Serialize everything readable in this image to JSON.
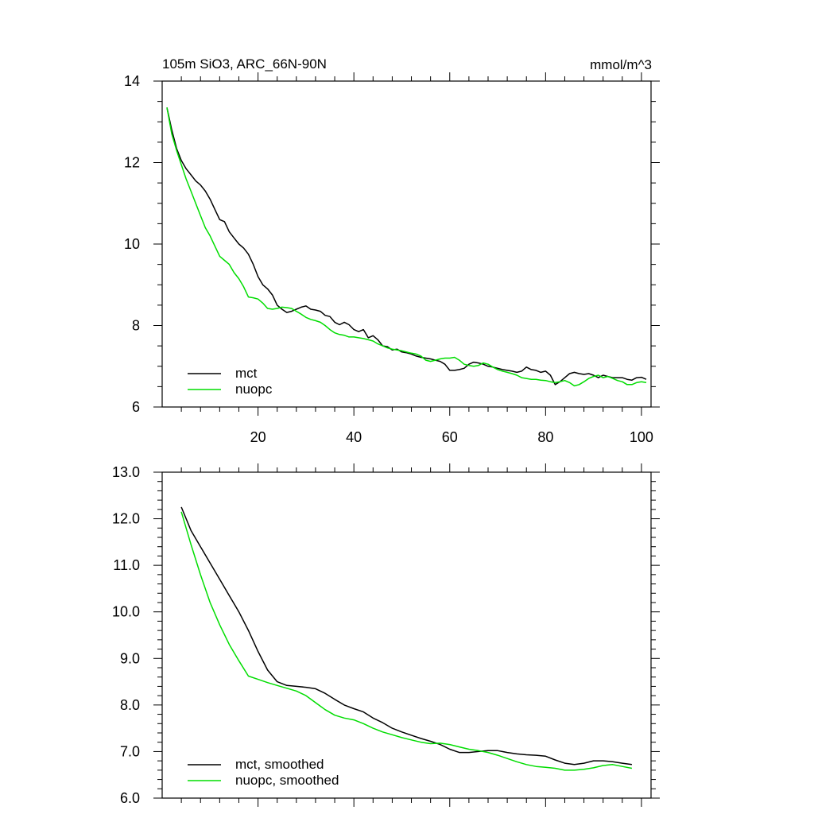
{
  "chart_data": [
    {
      "type": "line",
      "title": "105m SiO3, ARC_66N-90N",
      "units": "mmol/m^3",
      "xlim": [
        0,
        102
      ],
      "ylim": [
        6,
        14
      ],
      "xticks": [
        20,
        40,
        60,
        80,
        100
      ],
      "xtick_labels": [
        "20",
        "40",
        "60",
        "80",
        "100"
      ],
      "yticks": [
        6,
        8,
        10,
        12,
        14
      ],
      "ytick_labels": [
        "6",
        "8",
        "10",
        "12",
        "14"
      ],
      "legend_position": "bottom-left",
      "series": [
        {
          "name": "mct",
          "color": "#000000",
          "x": [
            1,
            2,
            3,
            4,
            5,
            6,
            7,
            8,
            9,
            10,
            11,
            12,
            13,
            14,
            15,
            16,
            17,
            18,
            19,
            20,
            21,
            22,
            23,
            24,
            25,
            26,
            27,
            28,
            29,
            30,
            31,
            32,
            33,
            34,
            35,
            36,
            37,
            38,
            39,
            40,
            41,
            42,
            43,
            44,
            45,
            46,
            47,
            48,
            49,
            50,
            51,
            52,
            53,
            54,
            55,
            56,
            57,
            58,
            59,
            60,
            61,
            62,
            63,
            64,
            65,
            66,
            67,
            68,
            69,
            70,
            71,
            72,
            73,
            74,
            75,
            76,
            77,
            78,
            79,
            80,
            81,
            82,
            83,
            84,
            85,
            86,
            87,
            88,
            89,
            90,
            91,
            92,
            93,
            94,
            95,
            96,
            97,
            98,
            99,
            100,
            101
          ],
          "values": [
            13.35,
            12.8,
            12.35,
            12.05,
            11.85,
            11.7,
            11.55,
            11.45,
            11.3,
            11.1,
            10.85,
            10.6,
            10.55,
            10.3,
            10.15,
            10.0,
            9.9,
            9.75,
            9.5,
            9.2,
            9.0,
            8.9,
            8.75,
            8.5,
            8.4,
            8.32,
            8.35,
            8.4,
            8.45,
            8.48,
            8.4,
            8.38,
            8.35,
            8.25,
            8.22,
            8.08,
            8.02,
            8.08,
            8.02,
            7.9,
            7.85,
            7.9,
            7.7,
            7.75,
            7.65,
            7.5,
            7.48,
            7.4,
            7.42,
            7.35,
            7.33,
            7.3,
            7.25,
            7.22,
            7.2,
            7.18,
            7.15,
            7.12,
            7.05,
            6.9,
            6.9,
            6.92,
            6.95,
            7.05,
            7.1,
            7.08,
            7.05,
            7.0,
            6.98,
            6.95,
            6.92,
            6.9,
            6.88,
            6.85,
            6.88,
            6.98,
            6.92,
            6.9,
            6.85,
            6.88,
            6.78,
            6.55,
            6.62,
            6.72,
            6.82,
            6.85,
            6.82,
            6.8,
            6.82,
            6.78,
            6.72,
            6.78,
            6.75,
            6.72,
            6.72,
            6.72,
            6.68,
            6.66,
            6.72,
            6.73,
            6.68
          ]
        },
        {
          "name": "nuopc",
          "color": "#00dd00",
          "x": [
            1,
            2,
            3,
            4,
            5,
            6,
            7,
            8,
            9,
            10,
            11,
            12,
            13,
            14,
            15,
            16,
            17,
            18,
            19,
            20,
            21,
            22,
            23,
            24,
            25,
            26,
            27,
            28,
            29,
            30,
            31,
            32,
            33,
            34,
            35,
            36,
            37,
            38,
            39,
            40,
            41,
            42,
            43,
            44,
            45,
            46,
            47,
            48,
            49,
            50,
            51,
            52,
            53,
            54,
            55,
            56,
            57,
            58,
            59,
            60,
            61,
            62,
            63,
            64,
            65,
            66,
            67,
            68,
            69,
            70,
            71,
            72,
            73,
            74,
            75,
            76,
            77,
            78,
            79,
            80,
            81,
            82,
            83,
            84,
            85,
            86,
            87,
            88,
            89,
            90,
            91,
            92,
            93,
            94,
            95,
            96,
            97,
            98,
            99,
            100,
            101
          ],
          "values": [
            13.35,
            12.7,
            12.3,
            11.95,
            11.6,
            11.3,
            11.0,
            10.7,
            10.4,
            10.2,
            9.95,
            9.7,
            9.6,
            9.5,
            9.3,
            9.15,
            8.95,
            8.7,
            8.68,
            8.65,
            8.55,
            8.42,
            8.4,
            8.42,
            8.45,
            8.44,
            8.42,
            8.35,
            8.28,
            8.2,
            8.15,
            8.12,
            8.08,
            8.0,
            7.9,
            7.82,
            7.78,
            7.76,
            7.72,
            7.72,
            7.7,
            7.68,
            7.65,
            7.62,
            7.55,
            7.5,
            7.45,
            7.42,
            7.4,
            7.38,
            7.35,
            7.32,
            7.3,
            7.25,
            7.15,
            7.12,
            7.15,
            7.18,
            7.2,
            7.2,
            7.22,
            7.15,
            7.05,
            7.02,
            7.0,
            7.02,
            7.08,
            7.05,
            6.98,
            6.92,
            6.88,
            6.85,
            6.82,
            6.78,
            6.72,
            6.7,
            6.68,
            6.68,
            6.66,
            6.65,
            6.62,
            6.6,
            6.62,
            6.65,
            6.6,
            6.52,
            6.55,
            6.62,
            6.7,
            6.75,
            6.78,
            6.72,
            6.75,
            6.7,
            6.65,
            6.62,
            6.55,
            6.55,
            6.6,
            6.62,
            6.6
          ]
        }
      ]
    },
    {
      "type": "line",
      "title": "",
      "xlim": [
        0,
        102
      ],
      "ylim": [
        6,
        13
      ],
      "xticks": [
        20,
        40,
        60,
        80,
        100
      ],
      "xtick_labels": [],
      "yticks": [
        6,
        7,
        8,
        9,
        10,
        11,
        12,
        13
      ],
      "ytick_labels": [
        "6.0",
        "7.0",
        "8.0",
        "9.0",
        "10.0",
        "11.0",
        "12.0",
        "13.0"
      ],
      "legend_position": "bottom-left",
      "series": [
        {
          "name": "mct, smoothed",
          "color": "#000000",
          "x": [
            4,
            6,
            8,
            10,
            12,
            14,
            16,
            18,
            20,
            22,
            24,
            26,
            28,
            30,
            32,
            34,
            36,
            38,
            40,
            42,
            44,
            46,
            48,
            50,
            52,
            54,
            56,
            58,
            60,
            62,
            64,
            66,
            68,
            70,
            72,
            74,
            76,
            78,
            80,
            82,
            84,
            86,
            88,
            90,
            92,
            94,
            96,
            98
          ],
          "values": [
            12.25,
            11.75,
            11.4,
            11.05,
            10.7,
            10.35,
            10.0,
            9.6,
            9.15,
            8.75,
            8.5,
            8.42,
            8.4,
            8.38,
            8.35,
            8.25,
            8.12,
            8.0,
            7.92,
            7.85,
            7.72,
            7.62,
            7.5,
            7.42,
            7.35,
            7.28,
            7.22,
            7.15,
            7.05,
            6.98,
            6.98,
            7.0,
            7.02,
            7.02,
            6.98,
            6.95,
            6.93,
            6.92,
            6.9,
            6.82,
            6.75,
            6.72,
            6.75,
            6.8,
            6.8,
            6.78,
            6.75,
            6.72
          ]
        },
        {
          "name": "nuopc, smoothed",
          "color": "#00dd00",
          "x": [
            4,
            6,
            8,
            10,
            12,
            14,
            16,
            18,
            20,
            22,
            24,
            26,
            28,
            30,
            32,
            34,
            36,
            38,
            40,
            42,
            44,
            46,
            48,
            50,
            52,
            54,
            56,
            58,
            60,
            62,
            64,
            66,
            68,
            70,
            72,
            74,
            76,
            78,
            80,
            82,
            84,
            86,
            88,
            90,
            92,
            94,
            96,
            98
          ],
          "values": [
            12.15,
            11.45,
            10.8,
            10.2,
            9.72,
            9.3,
            8.95,
            8.62,
            8.55,
            8.48,
            8.42,
            8.36,
            8.3,
            8.2,
            8.05,
            7.9,
            7.78,
            7.72,
            7.68,
            7.6,
            7.5,
            7.42,
            7.36,
            7.3,
            7.25,
            7.2,
            7.17,
            7.18,
            7.15,
            7.1,
            7.05,
            7.02,
            6.98,
            6.92,
            6.85,
            6.78,
            6.72,
            6.68,
            6.66,
            6.64,
            6.6,
            6.6,
            6.62,
            6.65,
            6.7,
            6.72,
            6.68,
            6.64
          ]
        }
      ]
    }
  ]
}
